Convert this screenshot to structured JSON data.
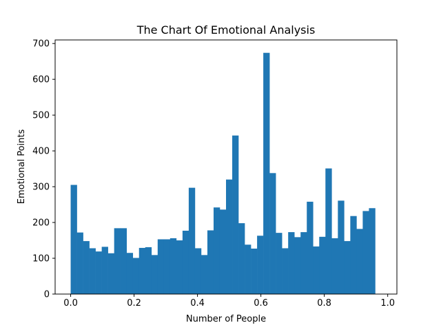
{
  "chart_data": {
    "type": "bar",
    "title": "The Chart Of Emotional Analysis",
    "xlabel": "Number of People",
    "ylabel": "Emotional Points",
    "xlim": [
      -0.049,
      1.029
    ],
    "ylim": [
      0,
      710
    ],
    "xticks": [
      0.0,
      0.2,
      0.4,
      0.6,
      0.8,
      1.0
    ],
    "xtick_labels": [
      "0.0",
      "0.2",
      "0.4",
      "0.6",
      "0.8",
      "1.0"
    ],
    "yticks": [
      0,
      100,
      200,
      300,
      400,
      500,
      600,
      700
    ],
    "ytick_labels": [
      "0",
      "100",
      "200",
      "300",
      "400",
      "500",
      "600",
      "700"
    ],
    "bin_start": 0.0,
    "bin_width": 0.0196,
    "values": [
      305,
      172,
      148,
      128,
      119,
      132,
      114,
      184,
      184,
      115,
      101,
      129,
      131,
      109,
      153,
      153,
      156,
      150,
      177,
      297,
      128,
      109,
      178,
      242,
      236,
      320,
      443,
      198,
      138,
      127,
      163,
      674,
      338,
      171,
      128,
      173,
      159,
      173,
      258,
      133,
      160,
      351,
      156,
      261,
      148,
      218,
      182,
      232,
      240
    ],
    "bar_color": "#1f77b4",
    "grid": false,
    "legend": "none"
  }
}
